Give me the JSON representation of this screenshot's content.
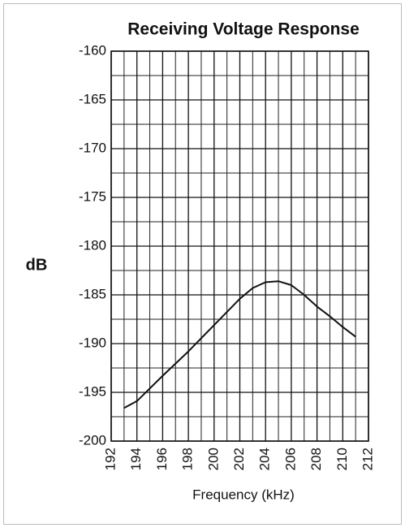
{
  "chart_data": {
    "type": "line",
    "title": "Receiving Voltage Response",
    "y_label": "dB",
    "x_label": "Frequency (kHz)",
    "x": [
      193,
      194,
      196,
      198,
      200,
      202,
      203,
      204,
      205,
      206,
      207,
      208,
      209,
      210,
      211
    ],
    "values": [
      -196.6,
      -195.9,
      -193.3,
      -190.8,
      -188.1,
      -185.4,
      -184.3,
      -183.7,
      -183.6,
      -184.0,
      -185.0,
      -186.2,
      -187.2,
      -188.3,
      -189.3
    ],
    "color": "#111111",
    "xlim": [
      192,
      212
    ],
    "xticks": [
      192,
      194,
      196,
      198,
      200,
      202,
      204,
      206,
      208,
      210,
      212
    ],
    "x_minor_ticks": [
      193,
      195,
      197,
      199,
      201,
      203,
      205,
      207,
      209,
      211
    ],
    "ylim": [
      -200,
      -160
    ],
    "yticks": [
      -160,
      -165,
      -170,
      -175,
      -180,
      -185,
      -190,
      -195,
      -200
    ],
    "y_minor_ticks": [
      -162.5,
      -167.5,
      -172.5,
      -177.5,
      -182.5,
      -187.5,
      -192.5,
      -197.5
    ],
    "grid": true
  }
}
